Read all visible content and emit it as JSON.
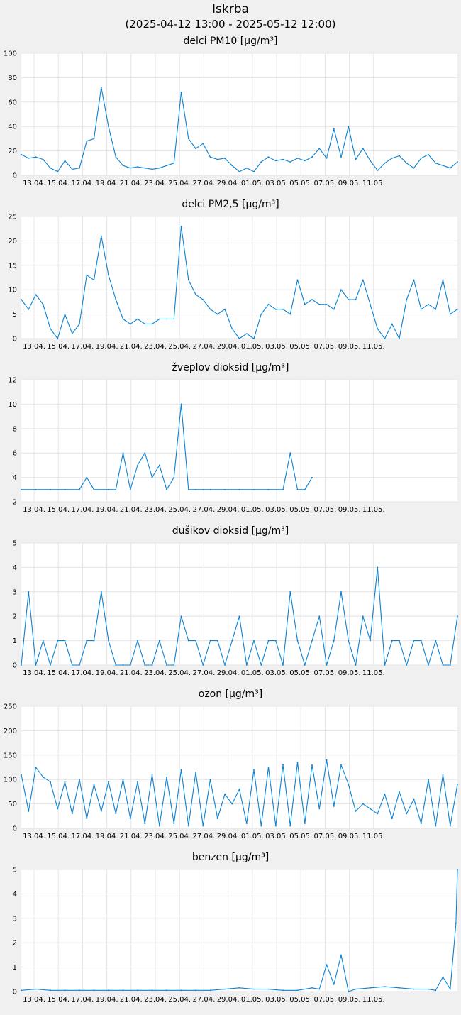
{
  "header": {
    "station": "Iskrba",
    "period": "(2025-04-12 13:00 - 2025-05-12 12:00)"
  },
  "colors": {
    "line": "#0a82d2",
    "grid": "#e4e4e4",
    "plot_bg": "#ffffff",
    "page_bg": "#f0f0f0"
  },
  "x_tick_labels": [
    "13.04.",
    "15.04.",
    "17.04.",
    "19.04.",
    "21.04.",
    "23.04.",
    "25.04.",
    "27.04.",
    "29.04.",
    "01.05.",
    "03.05.",
    "05.05.",
    "07.05.",
    "09.05.",
    "11.05."
  ],
  "chart_data": [
    {
      "type": "line",
      "title": "delci PM10 [µg/m³]",
      "ylim": [
        0,
        100
      ],
      "yticks": [
        "0",
        "20",
        "40",
        "60",
        "80",
        "100"
      ],
      "x_unit": "days since 2025-04-12 13:00",
      "series": [
        {
          "x": [
            0,
            0.5,
            1,
            1.5,
            2,
            2.5,
            3,
            3.5,
            4,
            4.5,
            5,
            5.5,
            6,
            6.5,
            7,
            7.5,
            8,
            8.5,
            9,
            9.5,
            10,
            10.5,
            11,
            11.5,
            12,
            12.5,
            13,
            13.5,
            14,
            14.5,
            15,
            15.5,
            16,
            16.5,
            17,
            17.5,
            18,
            18.5,
            19,
            19.5,
            20,
            20.5,
            21,
            21.5,
            22,
            22.5,
            23,
            23.5,
            24,
            24.5,
            25,
            25.5,
            26,
            26.5,
            27,
            27.5,
            28,
            28.5,
            29,
            29.5,
            30
          ],
          "values": [
            17,
            14,
            15,
            13,
            6,
            3,
            12,
            5,
            6,
            28,
            30,
            72,
            40,
            15,
            8,
            6,
            7,
            6,
            5,
            6,
            8,
            10,
            68,
            30,
            22,
            26,
            15,
            13,
            14,
            8,
            3,
            6,
            3,
            11,
            15,
            12,
            13,
            11,
            14,
            12,
            15,
            22,
            14,
            38,
            15,
            40,
            13,
            22,
            12,
            4,
            10,
            14,
            16,
            10,
            6,
            14,
            17,
            10,
            8,
            6,
            11
          ]
        }
      ]
    },
    {
      "type": "line",
      "title": "delci PM2,5 [µg/m³]",
      "ylim": [
        0,
        25
      ],
      "yticks": [
        "0",
        "5",
        "10",
        "15",
        "20",
        "25"
      ],
      "x_unit": "days since 2025-04-12 13:00",
      "series": [
        {
          "x": [
            0,
            0.5,
            1,
            1.5,
            2,
            2.5,
            3,
            3.5,
            4,
            4.5,
            5,
            5.5,
            6,
            6.5,
            7,
            7.5,
            8,
            8.5,
            9,
            9.5,
            10,
            10.5,
            11,
            11.5,
            12,
            12.5,
            13,
            13.5,
            14,
            14.5,
            15,
            15.5,
            16,
            16.5,
            17,
            17.5,
            18,
            18.5,
            19,
            19.5,
            20,
            20.5,
            21,
            21.5,
            22,
            22.5,
            23,
            23.5,
            24,
            24.5,
            25,
            25.5,
            26,
            26.5,
            27,
            27.5,
            28,
            28.5,
            29,
            29.5,
            30
          ],
          "values": [
            8,
            6,
            9,
            7,
            2,
            0,
            5,
            1,
            3,
            13,
            12,
            21,
            13,
            8,
            4,
            3,
            4,
            3,
            3,
            4,
            4,
            4,
            23,
            12,
            9,
            8,
            6,
            5,
            6,
            2,
            0,
            1,
            0,
            5,
            7,
            6,
            6,
            5,
            12,
            7,
            8,
            7,
            7,
            6,
            10,
            8,
            8,
            12,
            7,
            2,
            0,
            3,
            0,
            8,
            12,
            6,
            7,
            6,
            12,
            5,
            6
          ]
        }
      ]
    },
    {
      "type": "line",
      "title": "žveplov dioksid [µg/m³]",
      "ylim": [
        2,
        12
      ],
      "yticks": [
        "2",
        "4",
        "6",
        "8",
        "10",
        "12"
      ],
      "x_unit": "days since 2025-04-12 13:00",
      "series": [
        {
          "x": [
            0,
            1,
            2,
            3,
            4,
            4.5,
            5,
            6,
            6.5,
            7,
            7.5,
            8,
            8.5,
            9,
            9.5,
            10,
            10.5,
            11,
            11.5,
            12,
            12.5,
            13,
            14,
            15,
            16,
            17,
            18,
            18.5,
            19,
            19.5,
            20
          ],
          "values": [
            3,
            3,
            3,
            3,
            3,
            4,
            3,
            3,
            3,
            6,
            3,
            5,
            6,
            4,
            5,
            3,
            4,
            10,
            3,
            3,
            3,
            3,
            3,
            3,
            3,
            3,
            3,
            6,
            3,
            3,
            4
          ]
        }
      ]
    },
    {
      "type": "line",
      "title": "dušikov dioksid [µg/m³]",
      "ylim": [
        0,
        5
      ],
      "yticks": [
        "0",
        "1",
        "2",
        "3",
        "4",
        "5"
      ],
      "x_unit": "days since 2025-04-12 13:00",
      "series": [
        {
          "x": [
            0,
            0.5,
            1,
            1.5,
            2,
            2.5,
            3,
            3.5,
            4,
            4.5,
            5,
            5.5,
            6,
            6.5,
            7,
            7.5,
            8,
            8.5,
            9,
            9.5,
            10,
            10.5,
            11,
            11.5,
            12,
            12.5,
            13,
            13.5,
            14,
            14.5,
            15,
            15.5,
            16,
            16.5,
            17,
            17.5,
            18,
            18.5,
            19,
            19.5,
            20,
            20.5,
            21,
            21.5,
            22,
            22.5,
            23,
            23.5,
            24,
            24.5,
            25,
            25.5,
            26,
            26.5,
            27,
            27.5,
            28,
            28.5,
            29,
            29.5,
            30
          ],
          "values": [
            0,
            3,
            0,
            1,
            0,
            1,
            1,
            0,
            0,
            1,
            1,
            3,
            1,
            0,
            0,
            0,
            1,
            0,
            0,
            1,
            0,
            0,
            2,
            1,
            1,
            0,
            1,
            1,
            0,
            1,
            2,
            0,
            1,
            0,
            1,
            1,
            0,
            3,
            1,
            0,
            1,
            2,
            0,
            1,
            3,
            1,
            0,
            2,
            1,
            4,
            0,
            1,
            1,
            0,
            1,
            1,
            0,
            1,
            0,
            0,
            2
          ]
        }
      ]
    },
    {
      "type": "line",
      "title": "ozon [µg/m³]",
      "ylim": [
        0,
        250
      ],
      "yticks": [
        "0",
        "50",
        "100",
        "150",
        "200",
        "250"
      ],
      "x_unit": "days since 2025-04-12 13:00",
      "series": [
        {
          "x": [
            0,
            0.5,
            1,
            1.5,
            2,
            2.5,
            3,
            3.5,
            4,
            4.5,
            5,
            5.5,
            6,
            6.5,
            7,
            7.5,
            8,
            8.5,
            9,
            9.5,
            10,
            10.5,
            11,
            11.5,
            12,
            12.5,
            13,
            13.5,
            14,
            14.5,
            15,
            15.5,
            16,
            16.5,
            17,
            17.5,
            18,
            18.5,
            19,
            19.5,
            20,
            20.5,
            21,
            21.5,
            22,
            22.5,
            23,
            23.5,
            24,
            24.5,
            25,
            25.5,
            26,
            26.5,
            27,
            27.5,
            28,
            28.5,
            29,
            29.5,
            30
          ],
          "values": [
            110,
            35,
            125,
            105,
            95,
            40,
            95,
            30,
            100,
            20,
            90,
            35,
            95,
            30,
            100,
            20,
            95,
            10,
            110,
            5,
            105,
            10,
            120,
            5,
            115,
            5,
            100,
            20,
            70,
            50,
            80,
            10,
            120,
            5,
            125,
            5,
            130,
            5,
            135,
            10,
            130,
            40,
            140,
            45,
            130,
            90,
            35,
            50,
            40,
            30,
            70,
            20,
            75,
            30,
            60,
            10,
            100,
            5,
            110,
            5,
            90
          ]
        }
      ]
    },
    {
      "type": "line",
      "title": "benzen [µg/m³]",
      "ylim": [
        0,
        5
      ],
      "yticks": [
        "0",
        "1",
        "2",
        "3",
        "4",
        "5"
      ],
      "x_unit": "days since 2025-04-12 13:00",
      "series": [
        {
          "x": [
            0,
            1,
            2,
            3,
            4,
            5,
            6,
            7,
            8,
            9,
            10,
            11,
            12,
            13,
            14,
            15,
            16,
            17,
            18,
            19,
            20,
            20.5,
            21,
            21.5,
            22,
            22.5,
            23,
            24,
            25,
            26,
            27,
            28,
            28.5,
            29,
            29.5,
            29.9,
            30
          ],
          "values": [
            0.05,
            0.1,
            0.05,
            0.05,
            0.05,
            0.05,
            0.05,
            0.05,
            0.05,
            0.05,
            0.05,
            0.05,
            0.05,
            0.05,
            0.1,
            0.15,
            0.1,
            0.1,
            0.05,
            0.05,
            0.15,
            0.1,
            1.1,
            0.3,
            1.5,
            0,
            0.1,
            0.15,
            0.2,
            0.15,
            0.1,
            0.1,
            0.05,
            0.6,
            0.1,
            2.8,
            5
          ]
        }
      ]
    }
  ]
}
